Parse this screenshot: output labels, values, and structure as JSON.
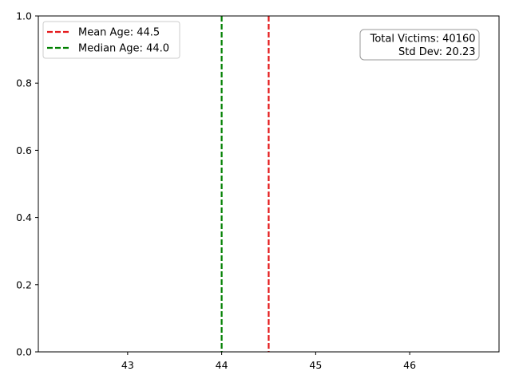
{
  "chart_data": {
    "type": "line",
    "title": "",
    "xlabel": "",
    "ylabel": "",
    "xlim": [
      42.05,
      46.95
    ],
    "ylim": [
      0,
      1
    ],
    "x_ticks": [
      43,
      44,
      45,
      46
    ],
    "y_ticks": [
      0.0,
      0.2,
      0.4,
      0.6,
      0.8,
      1.0
    ],
    "x_tick_labels": [
      "43",
      "44",
      "45",
      "46"
    ],
    "y_tick_labels": [
      "0.0",
      "0.2",
      "0.4",
      "0.6",
      "0.8",
      "1.0"
    ],
    "grid": false,
    "legend_position": "top-left",
    "series": [
      {
        "name": "Mean Age: 44.5",
        "x": 44.5,
        "style": "dashed",
        "color": "#e41a1c"
      },
      {
        "name": "Median Age: 44.0",
        "x": 44.0,
        "style": "dashed",
        "color": "#008000"
      }
    ],
    "annotation": {
      "position": "top-right",
      "lines": [
        "Total Victims: 40160",
        "Std Dev: 20.23"
      ]
    }
  }
}
